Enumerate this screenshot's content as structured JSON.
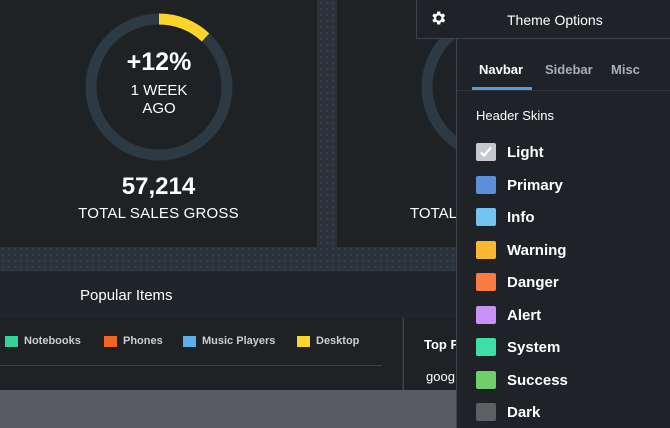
{
  "stat_card_1": {
    "percent": "+12%",
    "sub_line1": "1 WEEK",
    "sub_line2": "AGO",
    "value": "57,214",
    "label": "TOTAL SALES GROSS",
    "progress_fraction": 0.12,
    "ring_color": "#fed42a"
  },
  "stat_card_2": {
    "label_visible": "TOTAL"
  },
  "popular": {
    "title": "Popular Items",
    "legend": [
      {
        "label": "Notebooks",
        "color": "#34d399"
      },
      {
        "label": "Phones",
        "color": "#f26522"
      },
      {
        "label": "Music Players",
        "color": "#5ab0e8"
      },
      {
        "label": "Desktop",
        "color": "#fed42a"
      }
    ]
  },
  "top_panel": {
    "title": "Top F",
    "row": "goog"
  },
  "theme_options": {
    "title": "Theme Options",
    "icon": "gear-icon",
    "tabs": [
      {
        "label": "Navbar",
        "active": true
      },
      {
        "label": "Sidebar",
        "active": false
      },
      {
        "label": "Misc",
        "active": false
      }
    ],
    "section_title": "Header Skins",
    "skins": [
      {
        "label": "Light",
        "color": "#c5c9cd",
        "checked": true
      },
      {
        "label": "Primary",
        "color": "#5b8fd9",
        "checked": false
      },
      {
        "label": "Info",
        "color": "#72c3f0",
        "checked": false
      },
      {
        "label": "Warning",
        "color": "#fbb731",
        "checked": false
      },
      {
        "label": "Danger",
        "color": "#f97b42",
        "checked": false
      },
      {
        "label": "Alert",
        "color": "#c792f6",
        "checked": false
      },
      {
        "label": "System",
        "color": "#3ddfa6",
        "checked": false
      },
      {
        "label": "Success",
        "color": "#6fcf6a",
        "checked": false
      },
      {
        "label": "Dark",
        "color": "#5c6063",
        "checked": false
      }
    ]
  }
}
